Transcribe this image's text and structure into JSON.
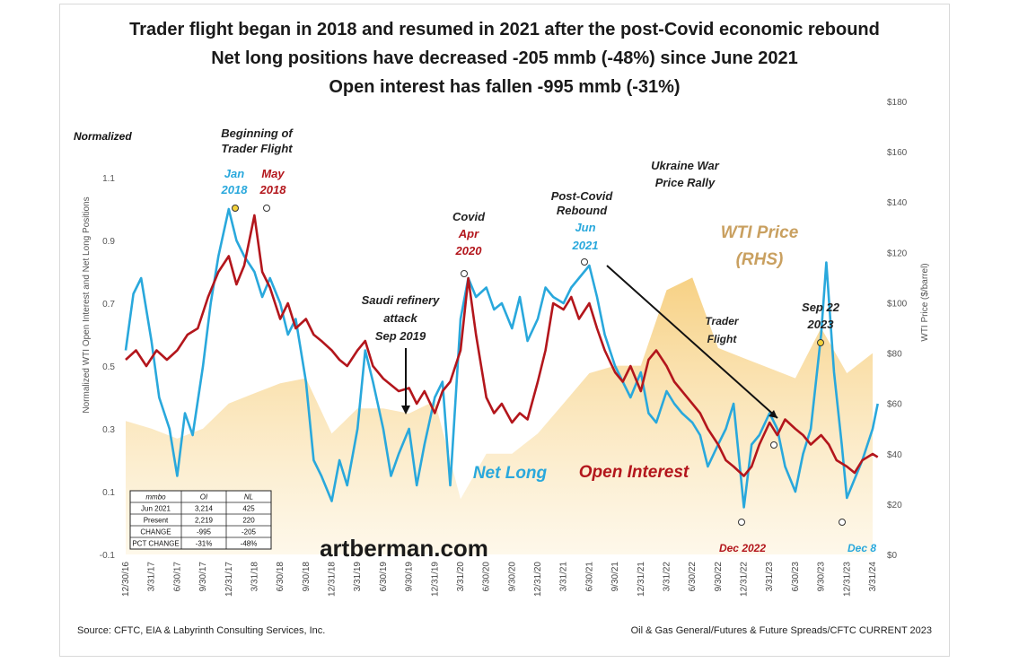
{
  "chart_data": {
    "type": "line",
    "title": [
      "Trader flight began in 2018 and resumed in 2021 after the post-Covid economic rebound",
      "Net long positions have decreased -205 mmb (-48%) since June 2021",
      "Open interest has fallen -995 mmb (-31%)"
    ],
    "left_axis": {
      "label": "Normalized WTI Open Interest and Net Long Positions",
      "header": "Normalized",
      "ticks": [
        "1.1",
        "0.9",
        "0.7",
        "0.5",
        "0.3",
        "0.1",
        "-0.1"
      ],
      "range": [
        -0.1,
        1.2
      ]
    },
    "right_axis": {
      "label": "WTI Price ($/barrel)",
      "ticks": [
        "$180",
        "$160",
        "$140",
        "$120",
        "$100",
        "$80",
        "$60",
        "$40",
        "$20",
        "$0"
      ],
      "range": [
        0,
        180
      ]
    },
    "x_ticks": [
      "12/30/16",
      "3/31/17",
      "6/30/17",
      "9/30/17",
      "12/31/17",
      "3/31/18",
      "6/30/18",
      "9/30/18",
      "12/31/18",
      "3/31/19",
      "6/30/19",
      "9/30/19",
      "12/31/19",
      "3/31/20",
      "6/30/20",
      "9/30/20",
      "12/31/20",
      "3/31/21",
      "6/30/21",
      "9/30/21",
      "12/31/21",
      "3/31/22",
      "6/30/22",
      "9/30/22",
      "12/31/22",
      "3/31/23",
      "6/30/23",
      "9/30/23",
      "12/31/23",
      "3/31/24"
    ],
    "series": [
      {
        "name": "WTI Price (RHS)",
        "kind": "area",
        "color": "#f7d58e",
        "axis": "right",
        "values": [
          [
            0,
            53
          ],
          [
            1,
            50
          ],
          [
            2,
            46
          ],
          [
            3,
            50
          ],
          [
            4,
            60
          ],
          [
            5,
            64
          ],
          [
            6,
            68
          ],
          [
            7,
            70
          ],
          [
            8,
            48
          ],
          [
            9,
            58
          ],
          [
            10,
            58
          ],
          [
            11,
            56
          ],
          [
            12,
            61
          ],
          [
            13,
            22
          ],
          [
            14,
            40
          ],
          [
            15,
            40
          ],
          [
            16,
            48
          ],
          [
            17,
            60
          ],
          [
            18,
            72
          ],
          [
            19,
            75
          ],
          [
            20,
            75
          ],
          [
            21,
            105
          ],
          [
            22,
            110
          ],
          [
            23,
            82
          ],
          [
            24,
            78
          ],
          [
            25,
            74
          ],
          [
            26,
            70
          ],
          [
            27,
            90
          ],
          [
            28,
            72
          ],
          [
            29,
            80
          ]
        ]
      },
      {
        "name": "Net Long",
        "kind": "line",
        "color": "#29a8dc",
        "axis": "left",
        "values": [
          [
            0,
            0.55
          ],
          [
            0.3,
            0.73
          ],
          [
            0.6,
            0.78
          ],
          [
            1,
            0.58
          ],
          [
            1.3,
            0.4
          ],
          [
            1.7,
            0.3
          ],
          [
            2,
            0.15
          ],
          [
            2.3,
            0.35
          ],
          [
            2.6,
            0.28
          ],
          [
            3,
            0.5
          ],
          [
            3.3,
            0.7
          ],
          [
            3.6,
            0.85
          ],
          [
            4,
            1.0
          ],
          [
            4.3,
            0.9
          ],
          [
            4.6,
            0.85
          ],
          [
            5,
            0.8
          ],
          [
            5.3,
            0.72
          ],
          [
            5.6,
            0.78
          ],
          [
            6,
            0.7
          ],
          [
            6.3,
            0.6
          ],
          [
            6.6,
            0.65
          ],
          [
            7,
            0.45
          ],
          [
            7.3,
            0.2
          ],
          [
            7.6,
            0.15
          ],
          [
            8,
            0.07
          ],
          [
            8.3,
            0.2
          ],
          [
            8.6,
            0.12
          ],
          [
            9,
            0.3
          ],
          [
            9.3,
            0.55
          ],
          [
            9.6,
            0.45
          ],
          [
            10,
            0.3
          ],
          [
            10.3,
            0.15
          ],
          [
            10.6,
            0.22
          ],
          [
            11,
            0.3
          ],
          [
            11.3,
            0.12
          ],
          [
            11.6,
            0.25
          ],
          [
            12,
            0.4
          ],
          [
            12.3,
            0.45
          ],
          [
            12.6,
            0.12
          ],
          [
            13,
            0.65
          ],
          [
            13.3,
            0.78
          ],
          [
            13.6,
            0.72
          ],
          [
            14,
            0.75
          ],
          [
            14.3,
            0.68
          ],
          [
            14.6,
            0.7
          ],
          [
            15,
            0.62
          ],
          [
            15.3,
            0.72
          ],
          [
            15.6,
            0.58
          ],
          [
            16,
            0.65
          ],
          [
            16.3,
            0.75
          ],
          [
            16.6,
            0.72
          ],
          [
            17,
            0.7
          ],
          [
            17.3,
            0.75
          ],
          [
            17.6,
            0.78
          ],
          [
            18,
            0.82
          ],
          [
            18.3,
            0.72
          ],
          [
            18.6,
            0.6
          ],
          [
            19,
            0.5
          ],
          [
            19.3,
            0.45
          ],
          [
            19.6,
            0.4
          ],
          [
            20,
            0.48
          ],
          [
            20.3,
            0.35
          ],
          [
            20.6,
            0.32
          ],
          [
            21,
            0.42
          ],
          [
            21.3,
            0.38
          ],
          [
            21.6,
            0.35
          ],
          [
            22,
            0.32
          ],
          [
            22.3,
            0.28
          ],
          [
            22.6,
            0.18
          ],
          [
            23,
            0.25
          ],
          [
            23.3,
            0.3
          ],
          [
            23.6,
            0.38
          ],
          [
            24,
            0.05
          ],
          [
            24.3,
            0.25
          ],
          [
            24.6,
            0.28
          ],
          [
            25,
            0.35
          ],
          [
            25.3,
            0.3
          ],
          [
            25.6,
            0.18
          ],
          [
            26,
            0.1
          ],
          [
            26.3,
            0.22
          ],
          [
            26.6,
            0.3
          ],
          [
            27,
            0.6
          ],
          [
            27.2,
            0.83
          ],
          [
            27.5,
            0.48
          ],
          [
            27.8,
            0.25
          ],
          [
            28,
            0.08
          ],
          [
            28.3,
            0.14
          ],
          [
            28.6,
            0.2
          ],
          [
            29,
            0.3
          ],
          [
            29.2,
            0.38
          ]
        ]
      },
      {
        "name": "Open Interest",
        "kind": "line",
        "color": "#b3161c",
        "axis": "left",
        "values": [
          [
            0,
            0.52
          ],
          [
            0.4,
            0.55
          ],
          [
            0.8,
            0.5
          ],
          [
            1.2,
            0.55
          ],
          [
            1.6,
            0.52
          ],
          [
            2,
            0.55
          ],
          [
            2.4,
            0.6
          ],
          [
            2.8,
            0.62
          ],
          [
            3.2,
            0.72
          ],
          [
            3.6,
            0.8
          ],
          [
            4,
            0.85
          ],
          [
            4.3,
            0.76
          ],
          [
            4.6,
            0.82
          ],
          [
            5,
            0.98
          ],
          [
            5.3,
            0.8
          ],
          [
            5.6,
            0.75
          ],
          [
            6,
            0.65
          ],
          [
            6.3,
            0.7
          ],
          [
            6.6,
            0.62
          ],
          [
            7,
            0.65
          ],
          [
            7.3,
            0.6
          ],
          [
            7.6,
            0.58
          ],
          [
            8,
            0.55
          ],
          [
            8.3,
            0.52
          ],
          [
            8.6,
            0.5
          ],
          [
            9,
            0.55
          ],
          [
            9.3,
            0.58
          ],
          [
            9.6,
            0.5
          ],
          [
            10,
            0.46
          ],
          [
            10.3,
            0.44
          ],
          [
            10.6,
            0.42
          ],
          [
            11,
            0.43
          ],
          [
            11.3,
            0.38
          ],
          [
            11.6,
            0.42
          ],
          [
            12,
            0.35
          ],
          [
            12.3,
            0.42
          ],
          [
            12.6,
            0.45
          ],
          [
            13,
            0.55
          ],
          [
            13.3,
            0.78
          ],
          [
            13.6,
            0.6
          ],
          [
            14,
            0.4
          ],
          [
            14.3,
            0.35
          ],
          [
            14.6,
            0.38
          ],
          [
            15,
            0.32
          ],
          [
            15.3,
            0.35
          ],
          [
            15.6,
            0.33
          ],
          [
            16,
            0.45
          ],
          [
            16.3,
            0.55
          ],
          [
            16.6,
            0.7
          ],
          [
            17,
            0.68
          ],
          [
            17.3,
            0.72
          ],
          [
            17.6,
            0.65
          ],
          [
            18,
            0.7
          ],
          [
            18.3,
            0.62
          ],
          [
            18.6,
            0.55
          ],
          [
            19,
            0.48
          ],
          [
            19.3,
            0.45
          ],
          [
            19.6,
            0.5
          ],
          [
            20,
            0.42
          ],
          [
            20.3,
            0.52
          ],
          [
            20.6,
            0.55
          ],
          [
            21,
            0.5
          ],
          [
            21.3,
            0.45
          ],
          [
            21.6,
            0.42
          ],
          [
            22,
            0.38
          ],
          [
            22.3,
            0.35
          ],
          [
            22.6,
            0.3
          ],
          [
            23,
            0.25
          ],
          [
            23.3,
            0.2
          ],
          [
            23.6,
            0.18
          ],
          [
            24,
            0.15
          ],
          [
            24.3,
            0.18
          ],
          [
            24.6,
            0.25
          ],
          [
            25,
            0.32
          ],
          [
            25.3,
            0.28
          ],
          [
            25.6,
            0.33
          ],
          [
            26,
            0.3
          ],
          [
            26.3,
            0.28
          ],
          [
            26.6,
            0.25
          ],
          [
            27,
            0.28
          ],
          [
            27.3,
            0.25
          ],
          [
            27.6,
            0.2
          ],
          [
            28,
            0.18
          ],
          [
            28.3,
            0.16
          ],
          [
            28.6,
            0.2
          ],
          [
            29,
            0.22
          ],
          [
            29.2,
            0.21
          ]
        ]
      }
    ],
    "annotations": [
      {
        "id": "a1",
        "lines": [
          "Beginning of",
          "Trader Flight"
        ],
        "color": "#222222"
      },
      {
        "id": "a2",
        "lines": [
          "Jan",
          "2018"
        ],
        "color": "#29a8dc"
      },
      {
        "id": "a3",
        "lines": [
          "May",
          "2018"
        ],
        "color": "#b3161c"
      },
      {
        "id": "a4",
        "lines": [
          "Saudi refinery",
          "attack",
          "Sep 2019"
        ],
        "color": "#222222"
      },
      {
        "id": "a5",
        "lines": [
          "Covid"
        ],
        "color": "#222222"
      },
      {
        "id": "a6",
        "lines": [
          "Apr",
          "2020"
        ],
        "color": "#b3161c"
      },
      {
        "id": "a7",
        "lines": [
          "Post-Covid",
          "Rebound"
        ],
        "color": "#222222"
      },
      {
        "id": "a8",
        "lines": [
          "Jun",
          "2021"
        ],
        "color": "#29a8dc"
      },
      {
        "id": "a9",
        "lines": [
          "Ukraine War",
          "Price Rally"
        ],
        "color": "#222222"
      },
      {
        "id": "a10",
        "lines": [
          "WTI Price",
          "(RHS)"
        ],
        "color": "#c9a060"
      },
      {
        "id": "a11",
        "lines": [
          "Trader",
          "Flight"
        ],
        "color": "#222222"
      },
      {
        "id": "a12",
        "lines": [
          "Sep 22",
          "2023"
        ],
        "color": "#222222"
      },
      {
        "id": "a13",
        "lines": [
          "Net Long"
        ],
        "color": "#29a8dc"
      },
      {
        "id": "a14",
        "lines": [
          "Open Interest"
        ],
        "color": "#b3161c"
      },
      {
        "id": "a15",
        "lines": [
          "Dec 2022"
        ],
        "color": "#b3161c"
      },
      {
        "id": "a16",
        "lines": [
          "Dec 8"
        ],
        "color": "#29a8dc"
      }
    ],
    "table": {
      "headers": [
        "mmbo",
        "OI",
        "NL"
      ],
      "rows": [
        [
          "Jun 2021",
          "3,214",
          "425"
        ],
        [
          "Present",
          "2,219",
          "220"
        ],
        [
          "CHANGE",
          "-995",
          "-205"
        ],
        [
          "PCT CHANGE",
          "-31%",
          "-48%"
        ]
      ]
    },
    "watermark": "artberman.com",
    "source": "Source: CFTC, EIA & Labyrinth Consulting Services, Inc.",
    "footer_right": "Oil & Gas General/Futures & Future Spreads/CFTC CURRENT 2023"
  }
}
